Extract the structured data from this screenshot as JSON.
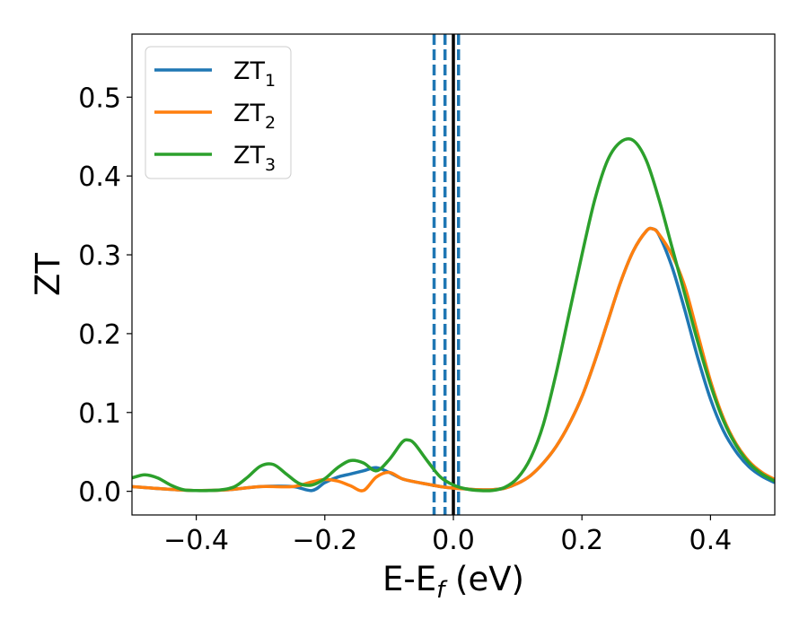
{
  "chart_data": {
    "type": "line",
    "xlabel_main": "E-E",
    "xlabel_sub": "f",
    "xlabel_unit": " (eV)",
    "ylabel": "ZT",
    "xlim": [
      -0.5,
      0.5
    ],
    "ylim": [
      -0.03,
      0.58
    ],
    "xticks": [
      -0.4,
      -0.2,
      0.0,
      0.2,
      0.4
    ],
    "xtick_labels": [
      "−0.4",
      "−0.2",
      "0.0",
      "0.2",
      "0.4"
    ],
    "yticks": [
      0.0,
      0.1,
      0.2,
      0.3,
      0.4,
      0.5
    ],
    "ytick_labels": [
      "0.0",
      "0.1",
      "0.2",
      "0.3",
      "0.4",
      "0.5"
    ],
    "grid": false,
    "legend_placement": "top-left",
    "vertical_lines": [
      {
        "x": -0.03,
        "style": "dashed",
        "color": "#1f77b4"
      },
      {
        "x": -0.013,
        "style": "dashed",
        "color": "#1f77b4"
      },
      {
        "x": 0.008,
        "style": "dashed",
        "color": "#1f77b4"
      },
      {
        "x": 0.0,
        "style": "solid",
        "color": "#000000"
      }
    ],
    "series": [
      {
        "name": "ZT",
        "subscript": "1",
        "color": "#1f77b4",
        "x": [
          -0.5,
          -0.45,
          -0.4,
          -0.35,
          -0.3,
          -0.25,
          -0.22,
          -0.2,
          -0.18,
          -0.16,
          -0.14,
          -0.12,
          -0.1,
          -0.08,
          -0.06,
          -0.04,
          -0.02,
          0.0,
          0.02,
          0.04,
          0.06,
          0.08,
          0.1,
          0.12,
          0.14,
          0.16,
          0.18,
          0.2,
          0.22,
          0.24,
          0.26,
          0.28,
          0.3,
          0.31,
          0.32,
          0.34,
          0.36,
          0.38,
          0.4,
          0.42,
          0.44,
          0.46,
          0.48,
          0.5
        ],
        "y": [
          0.006,
          0.003,
          0.001,
          0.002,
          0.006,
          0.006,
          0.001,
          0.011,
          0.018,
          0.022,
          0.026,
          0.03,
          0.024,
          0.016,
          0.012,
          0.009,
          0.006,
          0.004,
          0.003,
          0.002,
          0.002,
          0.004,
          0.01,
          0.02,
          0.036,
          0.057,
          0.085,
          0.12,
          0.165,
          0.215,
          0.265,
          0.305,
          0.33,
          0.333,
          0.325,
          0.285,
          0.23,
          0.17,
          0.117,
          0.077,
          0.05,
          0.031,
          0.019,
          0.011
        ]
      },
      {
        "name": "ZT",
        "subscript": "2",
        "color": "#ff7f0e",
        "x": [
          -0.5,
          -0.45,
          -0.4,
          -0.35,
          -0.3,
          -0.25,
          -0.22,
          -0.2,
          -0.18,
          -0.16,
          -0.14,
          -0.12,
          -0.1,
          -0.08,
          -0.06,
          -0.04,
          -0.02,
          0.0,
          0.02,
          0.04,
          0.06,
          0.08,
          0.1,
          0.12,
          0.14,
          0.16,
          0.18,
          0.2,
          0.22,
          0.24,
          0.26,
          0.28,
          0.3,
          0.31,
          0.32,
          0.34,
          0.36,
          0.38,
          0.4,
          0.42,
          0.44,
          0.46,
          0.48,
          0.5
        ],
        "y": [
          0.006,
          0.003,
          0.001,
          0.002,
          0.006,
          0.006,
          0.012,
          0.015,
          0.013,
          0.007,
          0.001,
          0.018,
          0.024,
          0.016,
          0.012,
          0.009,
          0.006,
          0.004,
          0.003,
          0.002,
          0.002,
          0.004,
          0.01,
          0.02,
          0.036,
          0.057,
          0.085,
          0.12,
          0.165,
          0.215,
          0.265,
          0.305,
          0.33,
          0.333,
          0.326,
          0.3,
          0.26,
          0.2,
          0.14,
          0.093,
          0.06,
          0.038,
          0.024,
          0.015
        ]
      },
      {
        "name": "ZT",
        "subscript": "3",
        "color": "#2ca02c",
        "x": [
          -0.5,
          -0.48,
          -0.46,
          -0.44,
          -0.42,
          -0.4,
          -0.38,
          -0.36,
          -0.34,
          -0.32,
          -0.3,
          -0.28,
          -0.26,
          -0.24,
          -0.22,
          -0.2,
          -0.18,
          -0.16,
          -0.14,
          -0.12,
          -0.1,
          -0.08,
          -0.07,
          -0.06,
          -0.04,
          -0.02,
          0.0,
          0.02,
          0.04,
          0.06,
          0.08,
          0.1,
          0.12,
          0.14,
          0.16,
          0.18,
          0.2,
          0.22,
          0.24,
          0.26,
          0.28,
          0.3,
          0.32,
          0.34,
          0.36,
          0.38,
          0.4,
          0.42,
          0.44,
          0.46,
          0.48,
          0.5
        ],
        "y": [
          0.017,
          0.021,
          0.017,
          0.008,
          0.002,
          0.001,
          0.001,
          0.002,
          0.006,
          0.018,
          0.032,
          0.034,
          0.022,
          0.01,
          0.008,
          0.016,
          0.03,
          0.039,
          0.036,
          0.026,
          0.04,
          0.062,
          0.065,
          0.06,
          0.038,
          0.018,
          0.008,
          0.003,
          0.001,
          0.001,
          0.005,
          0.017,
          0.042,
          0.085,
          0.15,
          0.225,
          0.3,
          0.37,
          0.42,
          0.443,
          0.445,
          0.42,
          0.37,
          0.31,
          0.25,
          0.19,
          0.135,
          0.09,
          0.058,
          0.036,
          0.022,
          0.013
        ]
      }
    ]
  }
}
